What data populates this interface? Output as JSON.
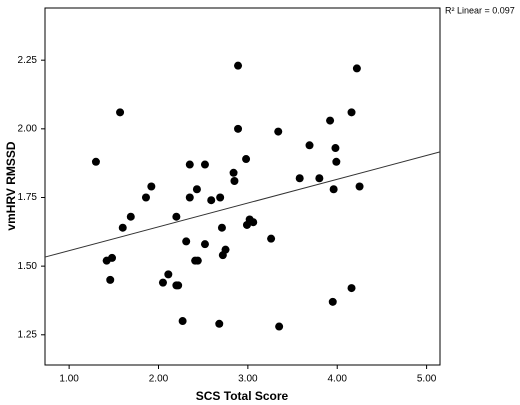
{
  "chart_data": {
    "type": "scatter",
    "x_label": "SCS Total Score",
    "y_label": "vmHRV RMSSD",
    "annotation": "R² Linear = 0.097",
    "xlim": [
      0.73,
      5.15
    ],
    "ylim": [
      1.14,
      2.44
    ],
    "xticks": [
      {
        "value": 1,
        "label": "1.00"
      },
      {
        "value": 2,
        "label": "2.00"
      },
      {
        "value": 3,
        "label": "3.00"
      },
      {
        "value": 4,
        "label": "4.00"
      },
      {
        "value": 5,
        "label": "5.00"
      }
    ],
    "yticks": [
      {
        "value": 1.25,
        "label": "1.25"
      },
      {
        "value": 1.5,
        "label": "1.50"
      },
      {
        "value": 1.75,
        "label": "1.75"
      },
      {
        "value": 2,
        "label": "2.00"
      },
      {
        "value": 2.25,
        "label": "2.25"
      }
    ],
    "color": "#000000",
    "x": [
      1.3,
      1.57,
      1.6,
      1.42,
      1.48,
      1.46,
      1.69,
      1.86,
      1.92,
      2.2,
      2.05,
      2.11,
      2.2,
      2.22,
      2.27,
      2.31,
      2.35,
      2.35,
      2.43,
      2.52,
      2.41,
      2.44,
      2.52,
      2.59,
      2.69,
      2.71,
      2.72,
      2.75,
      2.68,
      2.84,
      2.85,
      2.89,
      2.89,
      2.98,
      2.99,
      3.02,
      3.06,
      3.26,
      3.34,
      3.35,
      3.58,
      3.69,
      3.8,
      3.92,
      3.96,
      3.95,
      3.98,
      3.99,
      4.16,
      4.16,
      4.22,
      4.25
    ],
    "y": [
      1.88,
      2.06,
      1.64,
      1.52,
      1.53,
      1.45,
      1.68,
      1.75,
      1.79,
      1.68,
      1.44,
      1.47,
      1.43,
      1.43,
      1.3,
      1.59,
      1.87,
      1.75,
      1.78,
      1.87,
      1.52,
      1.52,
      1.58,
      1.74,
      1.75,
      1.64,
      1.54,
      1.56,
      1.29,
      1.84,
      1.81,
      2.23,
      2.0,
      1.89,
      1.65,
      1.67,
      1.66,
      1.6,
      1.99,
      1.28,
      1.82,
      1.94,
      1.82,
      2.03,
      1.78,
      1.37,
      1.93,
      1.88,
      2.06,
      1.42,
      2.22,
      1.79
    ],
    "fit": {
      "color": "#333333",
      "x": [
        0.73,
        5.15
      ],
      "y": [
        1.533,
        1.916
      ]
    }
  }
}
